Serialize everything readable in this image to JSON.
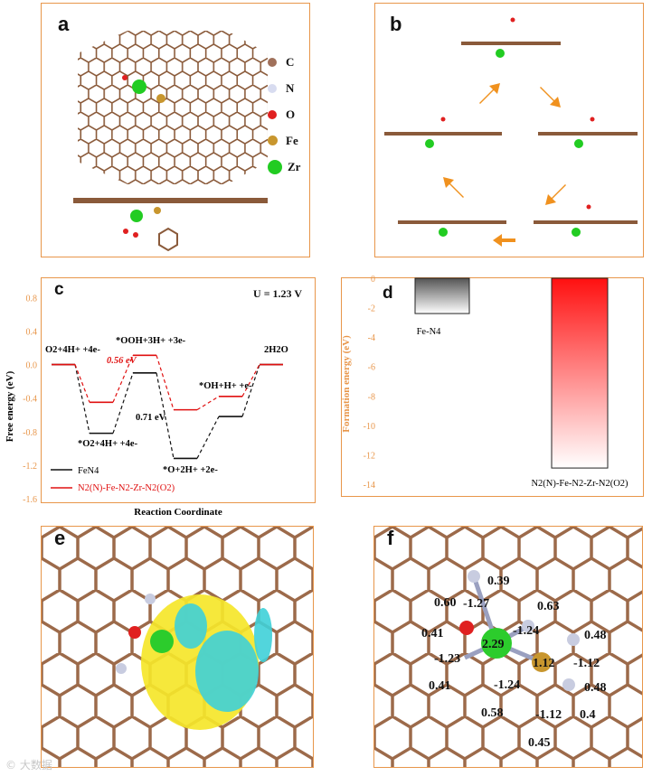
{
  "panels": {
    "a": "a",
    "b": "b",
    "c": "c",
    "d": "d",
    "e": "e",
    "f": "f"
  },
  "legend_a": [
    {
      "symbol": "C",
      "color": "#a0705a"
    },
    {
      "symbol": "N",
      "color": "#d8dcf0"
    },
    {
      "symbol": "O",
      "color": "#e02020"
    },
    {
      "symbol": "Fe",
      "color": "#c8962e"
    },
    {
      "symbol": "Zr",
      "color": "#22cc22"
    }
  ],
  "chart_data": [
    {
      "type": "line",
      "panel": "c",
      "annotation_top": "U = 1.23 V",
      "xlabel": "Reaction Coordinate",
      "ylabel": "Free energy (eV)",
      "ylim": [
        -1.6,
        0.9
      ],
      "yticks": [
        "0.8",
        "0.4",
        "0.0",
        "-0.4",
        "-0.8",
        "-1.2",
        "-1.6"
      ],
      "series": [
        {
          "name": "FeN4",
          "color": "#111111",
          "values": [
            0.0,
            -0.82,
            -0.1,
            -1.12,
            -0.62,
            0.0
          ]
        },
        {
          "name": "N2(N)-Fe-N2-Zr-N2(O2)",
          "color": "#e01010",
          "values": [
            0.0,
            -0.45,
            0.11,
            -0.54,
            -0.38,
            0.0
          ]
        }
      ],
      "step_labels": [
        "O2+4H+ +4e-",
        "*O2+4H+ +4e-",
        "*OOH+3H+ +3e-",
        "*O+2H+ +2e-",
        "*OH+H+ +e-",
        "2H2O"
      ],
      "annotations": [
        "0.56 eV",
        "0.71 eV"
      ]
    },
    {
      "type": "bar",
      "panel": "d",
      "ylabel": "Formation energy (eV)",
      "ylim": [
        -14,
        0
      ],
      "yticks": [
        "0",
        "-2",
        "-4",
        "-6",
        "-8",
        "-10",
        "-12",
        "-14"
      ],
      "categories": [
        "Fe-N4",
        "N2(N)-Fe-N2-Zr-N2(O2)"
      ],
      "values": [
        -2.4,
        -12.9
      ]
    }
  ],
  "charges_f": [
    "0.39",
    "0.60",
    "-1.27",
    "0.63",
    "0.41",
    "-1.24",
    "0.48",
    "-1.23",
    "2.29",
    "1.12",
    "-1.12",
    "0.41",
    "-1.24",
    "0.48",
    "0.58",
    "-1.12",
    "0.4",
    "0.45"
  ],
  "watermark": "© 大数据"
}
